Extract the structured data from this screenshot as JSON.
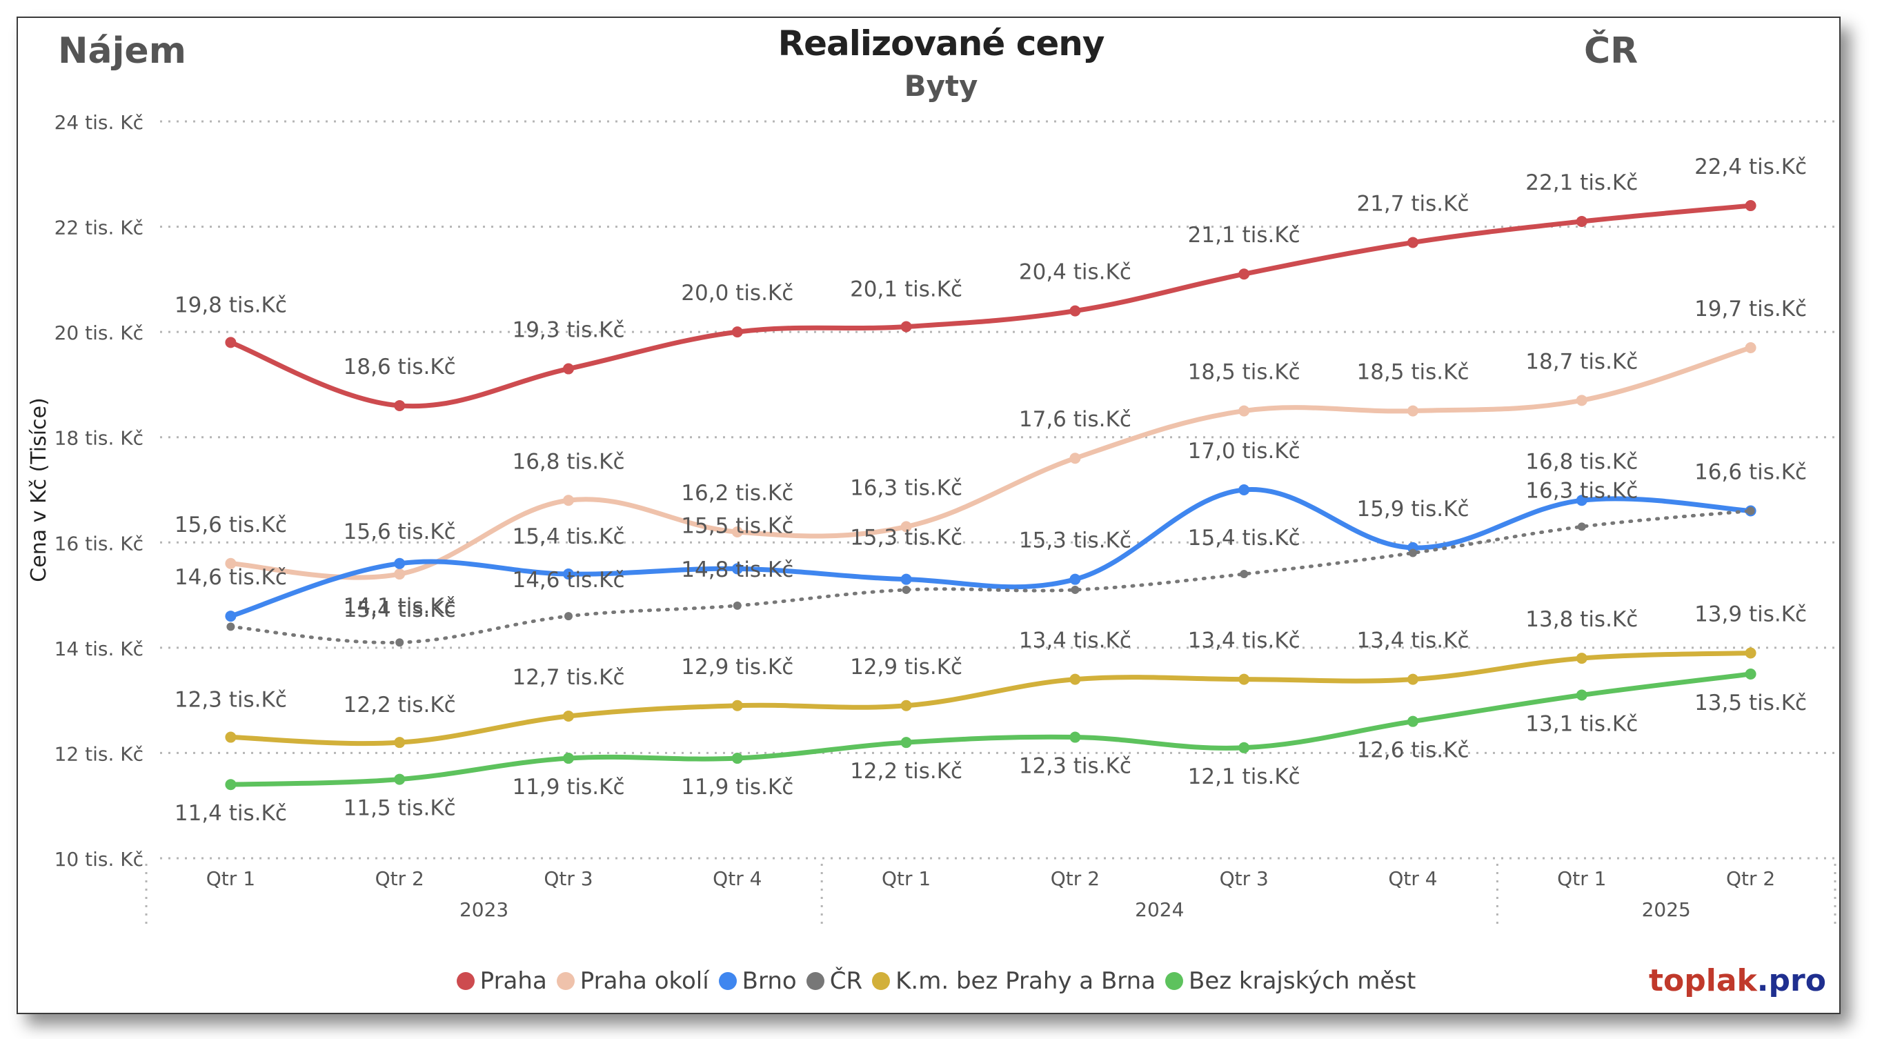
{
  "header": {
    "left": "Nájem",
    "right": "ČR",
    "title": "Realizované ceny",
    "subtitle": "Byty"
  },
  "brand": {
    "part1": "toplak",
    "part2": ".pro"
  },
  "chart_data": {
    "type": "line",
    "title": "Realizované ceny",
    "subtitle": "Byty",
    "ylabel": "Cena v Kč (Tisíce)",
    "xlabel": "",
    "ylim": [
      10,
      24
    ],
    "y_ticks": [
      10,
      12,
      14,
      16,
      18,
      20,
      22,
      24
    ],
    "y_tick_labels": [
      "10 tis. Kč",
      "12 tis. Kč",
      "14 tis. Kč",
      "16 tis. Kč",
      "18 tis. Kč",
      "20 tis. Kč",
      "22 tis. Kč",
      "24 tis. Kč"
    ],
    "categories": [
      "Qtr 1",
      "Qtr 2",
      "Qtr 3",
      "Qtr 4",
      "Qtr 1",
      "Qtr 2",
      "Qtr 3",
      "Qtr 4",
      "Qtr 1",
      "Qtr 2"
    ],
    "year_groups": [
      {
        "label": "2023",
        "quarters": 4
      },
      {
        "label": "2024",
        "quarters": 4
      },
      {
        "label": "2025",
        "quarters": 2
      }
    ],
    "grid": "horizontal dotted",
    "legend_position": "bottom",
    "series": [
      {
        "name": "Praha",
        "color": "#cd4b4f",
        "dashed": false,
        "values": [
          19.8,
          18.6,
          19.3,
          20.0,
          20.1,
          20.4,
          21.1,
          21.7,
          22.1,
          22.4
        ],
        "labels": [
          "19,8 tis.Kč",
          "18,6 tis.Kč",
          "19,3 tis.Kč",
          "20,0 tis.Kč",
          "20,1 tis.Kč",
          "20,4 tis.Kč",
          "21,1 tis.Kč",
          "21,7 tis.Kč",
          "22,1 tis.Kč",
          "22,4 tis.Kč"
        ]
      },
      {
        "name": "Praha okolí",
        "color": "#efc2ab",
        "dashed": false,
        "values": [
          15.6,
          15.4,
          16.8,
          16.2,
          16.3,
          17.6,
          18.5,
          18.5,
          18.7,
          19.7
        ],
        "labels": [
          "15,6 tis.Kč",
          "15,4 tis.Kč",
          "16,8 tis.Kč",
          "16,2 tis.Kč",
          "16,3 tis.Kč",
          "17,6 tis.Kč",
          "18,5 tis.Kč",
          "18,5 tis.Kč",
          "18,7 tis.Kč",
          "19,7 tis.Kč"
        ]
      },
      {
        "name": "Brno",
        "color": "#3f86ef",
        "dashed": false,
        "values": [
          14.6,
          15.6,
          15.4,
          15.5,
          15.3,
          15.3,
          17.0,
          15.9,
          16.8,
          16.6
        ],
        "labels": [
          "14,6 tis.Kč",
          "15,6 tis.Kč",
          "15,4 tis.Kč",
          "15,5 tis.Kč",
          "15,3 tis.Kč",
          "15,3 tis.Kč",
          "17,0 tis.Kč",
          "15,9 tis.Kč",
          "16,8 tis.Kč",
          "16,6 tis.Kč"
        ]
      },
      {
        "name": "ČR",
        "color": "#777777",
        "dashed": true,
        "values": [
          14.4,
          14.1,
          14.6,
          14.8,
          15.1,
          15.1,
          15.4,
          15.8,
          16.3,
          16.6
        ],
        "labels": [
          "",
          "14,1 tis.Kč",
          "14,6 tis.Kč",
          "14,8 tis.Kč",
          "",
          "",
          "15,4 tis.Kč",
          "",
          "16,3 tis.Kč",
          ""
        ]
      },
      {
        "name": "K.m. bez Prahy a Brna",
        "color": "#d2b03a",
        "dashed": false,
        "values": [
          12.3,
          12.2,
          12.7,
          12.9,
          12.9,
          13.4,
          13.4,
          13.4,
          13.8,
          13.9
        ],
        "labels": [
          "12,3 tis.Kč",
          "12,2 tis.Kč",
          "12,7 tis.Kč",
          "12,9 tis.Kč",
          "12,9 tis.Kč",
          "13,4 tis.Kč",
          "13,4 tis.Kč",
          "13,4 tis.Kč",
          "13,8 tis.Kč",
          "13,9 tis.Kč"
        ]
      },
      {
        "name": "Bez krajských měst",
        "color": "#5dc25d",
        "dashed": false,
        "values": [
          11.4,
          11.5,
          11.9,
          11.9,
          12.2,
          12.3,
          12.1,
          12.6,
          13.1,
          13.5
        ],
        "labels": [
          "11,4 tis.Kč",
          "11,5 tis.Kč",
          "11,9 tis.Kč",
          "11,9 tis.Kč",
          "12,2 tis.Kč",
          "12,3 tis.Kč",
          "12,1 tis.Kč",
          "12,6 tis.Kč",
          "13,1 tis.Kč",
          "13,5 tis.Kč"
        ]
      }
    ]
  }
}
